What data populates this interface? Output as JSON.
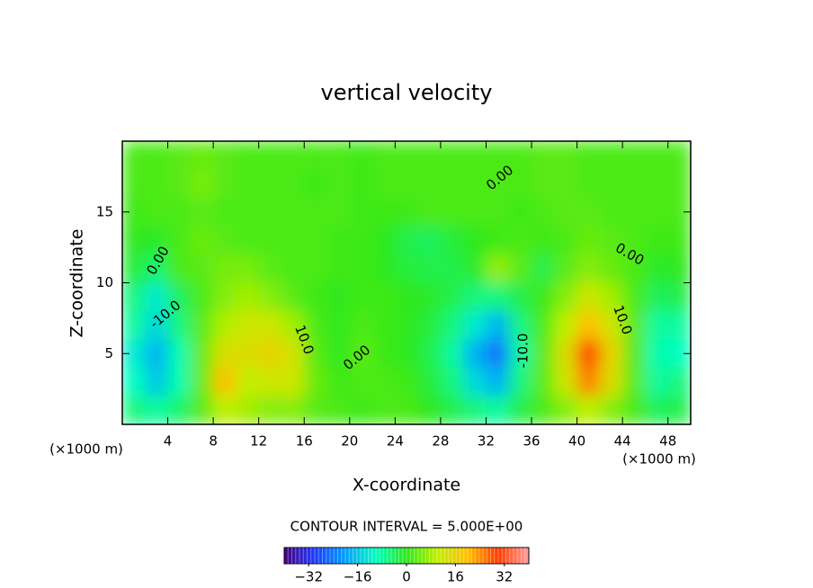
{
  "chart_data": {
    "type": "heatmap",
    "title": "vertical velocity",
    "x_label": "X-coordinate",
    "y_label": "Z-coordinate",
    "x_unit_label": "(×1000 m)",
    "x_unit_label_right": "(×1000 m)",
    "x": [
      1,
      3,
      5,
      7,
      9,
      11,
      13,
      15,
      17,
      19,
      21,
      23,
      25,
      27,
      29,
      31,
      33,
      35,
      37,
      39,
      41,
      43,
      45,
      47,
      49
    ],
    "y": [
      19,
      17,
      15,
      13,
      11,
      9,
      7,
      5,
      3,
      1
    ],
    "z": [
      [
        2,
        2,
        3,
        4,
        3,
        2,
        2,
        2,
        2,
        2,
        1,
        2,
        2,
        2,
        2,
        2,
        2,
        2,
        3,
        3,
        2,
        2,
        2,
        2,
        2
      ],
      [
        2,
        2,
        3,
        5,
        3,
        2,
        2,
        2,
        1,
        2,
        1,
        2,
        2,
        2,
        2,
        2,
        2,
        2,
        3,
        3,
        2,
        2,
        2,
        2,
        2
      ],
      [
        1,
        2,
        2,
        3,
        2,
        2,
        2,
        2,
        2,
        2,
        1,
        1,
        1,
        2,
        2,
        2,
        2,
        1,
        2,
        3,
        3,
        2,
        2,
        2,
        2
      ],
      [
        0,
        -1,
        2,
        4,
        3,
        2,
        2,
        2,
        2,
        1,
        1,
        0,
        -3,
        -4,
        -2,
        0,
        1,
        2,
        1,
        2,
        4,
        3,
        2,
        1,
        1
      ],
      [
        -2,
        -5,
        2,
        3,
        5,
        5,
        3,
        2,
        2,
        1,
        1,
        0,
        -2,
        -3,
        -3,
        -1,
        7,
        3,
        -3,
        3,
        6,
        4,
        2,
        -1,
        0
      ],
      [
        -6,
        -12,
        -4,
        2,
        6,
        8,
        6,
        3,
        1,
        0,
        1,
        1,
        0,
        -1,
        -3,
        -6,
        -6,
        -3,
        1,
        6,
        12,
        8,
        2,
        -4,
        -3
      ],
      [
        -8,
        -14,
        -6,
        3,
        9,
        12,
        12,
        8,
        2,
        0,
        2,
        1,
        0,
        -2,
        -6,
        -12,
        -18,
        -6,
        2,
        10,
        20,
        12,
        3,
        -8,
        -8
      ],
      [
        -12,
        -18,
        -9,
        4,
        14,
        14,
        16,
        13,
        3,
        0,
        3,
        1,
        0,
        -3,
        -8,
        -18,
        -25,
        -8,
        3,
        14,
        30,
        16,
        3,
        -9,
        -10
      ],
      [
        -10,
        -16,
        -9,
        4,
        20,
        10,
        12,
        12,
        4,
        1,
        2,
        2,
        1,
        -2,
        -6,
        -14,
        -18,
        -6,
        3,
        12,
        25,
        14,
        3,
        -8,
        -6
      ],
      [
        -6,
        -8,
        -5,
        3,
        10,
        8,
        6,
        6,
        3,
        2,
        1,
        2,
        2,
        0,
        -3,
        -6,
        -8,
        -3,
        2,
        6,
        10,
        6,
        2,
        -4,
        -3
      ]
    ],
    "xlim": [
      0,
      50
    ],
    "ylim": [
      0,
      20
    ],
    "xticks": [
      4,
      8,
      12,
      16,
      20,
      24,
      28,
      32,
      36,
      40,
      44,
      48
    ],
    "yticks": [
      5,
      10,
      15
    ],
    "clim": [
      -40,
      40
    ],
    "colormap": [
      "#4b0082",
      "#1e3cff",
      "#00a0ff",
      "#00ffc0",
      "#2ee81a",
      "#c0f000",
      "#ffc000",
      "#ff3c00",
      "#ffa0a0"
    ],
    "colorbar_title": "CONTOUR INTERVAL = 5.000E+00",
    "colorbar_ticks": [
      {
        "value": -32,
        "label": "−32"
      },
      {
        "value": -16,
        "label": "−16"
      },
      0,
      16,
      32
    ],
    "annotations": [
      "0.00",
      "-10.0",
      "10.0",
      "0.00",
      "0.00",
      "-10.0",
      "10.0",
      "0.00"
    ]
  }
}
